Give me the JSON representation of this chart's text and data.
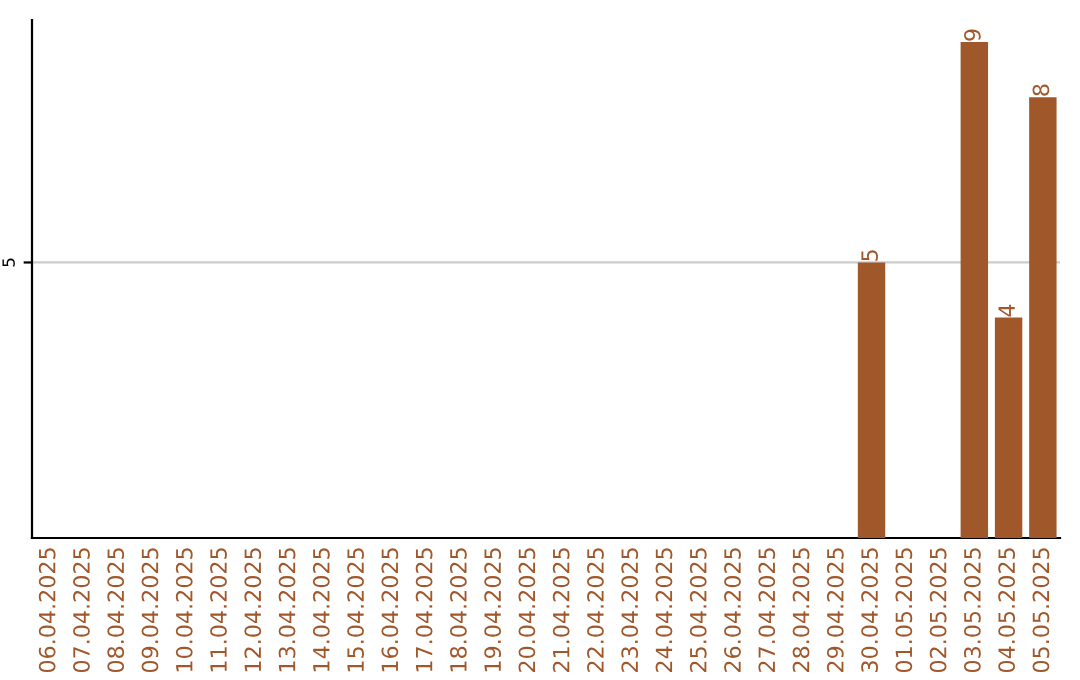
{
  "chart_data": {
    "type": "bar",
    "categories": [
      "06.04.2025",
      "07.04.2025",
      "08.04.2025",
      "09.04.2025",
      "10.04.2025",
      "11.04.2025",
      "12.04.2025",
      "13.04.2025",
      "14.04.2025",
      "15.04.2025",
      "16.04.2025",
      "17.04.2025",
      "18.04.2025",
      "19.04.2025",
      "20.04.2025",
      "21.04.2025",
      "22.04.2025",
      "23.04.2025",
      "24.04.2025",
      "25.04.2025",
      "26.04.2025",
      "27.04.2025",
      "28.04.2025",
      "29.04.2025",
      "30.04.2025",
      "01.05.2025",
      "02.05.2025",
      "03.05.2025",
      "04.05.2025",
      "05.05.2025"
    ],
    "values": [
      null,
      null,
      null,
      null,
      null,
      null,
      null,
      null,
      null,
      null,
      null,
      null,
      null,
      null,
      null,
      null,
      null,
      null,
      null,
      null,
      null,
      null,
      null,
      null,
      5,
      null,
      null,
      9,
      4,
      8
    ],
    "color": "#a0572a",
    "ylim": [
      0,
      9.4
    ],
    "yticks": [
      5
    ],
    "grid": "y",
    "data_labels": true
  }
}
